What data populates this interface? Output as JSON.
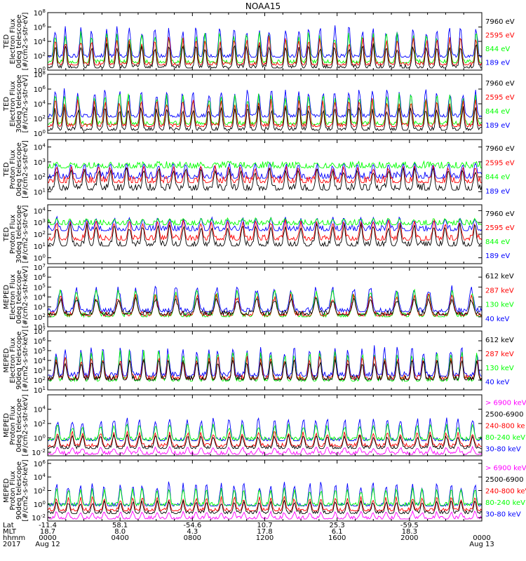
{
  "title": "NOAA15",
  "colors": {
    "black": "#000000",
    "red": "#ff0000",
    "green": "#00ff00",
    "blue": "#0000ff",
    "magenta": "#ff00ff"
  },
  "chart_data": [
    {
      "type": "line",
      "panel": 1,
      "ylabel": [
        "TED",
        "Electron Flux",
        "0deg telescope",
        "[#/cm2-s-str-eV]"
      ],
      "yticks": [
        "10^0",
        "10^2",
        "10^4",
        "10^6",
        "10^8"
      ],
      "ylim_log": [
        0,
        8
      ],
      "legend": [
        {
          "label": "7960 eV",
          "color": "black"
        },
        {
          "label": "2595 eV",
          "color": "red"
        },
        {
          "label": "844 eV",
          "color": "green"
        },
        {
          "label": "189 eV",
          "color": "blue"
        }
      ],
      "levels": {
        "blue": 1.8,
        "green": 1.0,
        "red": 0.7,
        "black": 0.3
      },
      "peaks": {
        "blue": 6.3,
        "green": 5.5,
        "red": 4.8,
        "black": 3.8
      },
      "npk": 34
    },
    {
      "type": "line",
      "panel": 2,
      "ylabel": [
        "TED",
        "Electron Flux",
        "30deg telescope",
        "[#/cm2-s-str-eV]"
      ],
      "yticks": [
        "10^0",
        "10^2",
        "10^4",
        "10^6",
        "10^8"
      ],
      "ylim_log": [
        0,
        8
      ],
      "legend": [
        {
          "label": "7960 eV",
          "color": "black"
        },
        {
          "label": "2595 eV",
          "color": "red"
        },
        {
          "label": "844 eV",
          "color": "green"
        },
        {
          "label": "189 eV",
          "color": "blue"
        }
      ],
      "levels": {
        "blue": 2.2,
        "green": 1.2,
        "red": 0.9,
        "black": 0.4
      },
      "peaks": {
        "blue": 6.2,
        "green": 5.6,
        "red": 4.9,
        "black": 3.8
      },
      "npk": 34
    },
    {
      "type": "line",
      "panel": 3,
      "ylabel": [
        "TED",
        "Proton Flux",
        "0deg telescope",
        "[#/cm2-s-str-eV]"
      ],
      "yticks": [
        "10^1",
        "10^2",
        "10^3",
        "10^4"
      ],
      "ylim_log": [
        0.5,
        4.5
      ],
      "legend": [
        {
          "label": "7960 eV",
          "color": "black"
        },
        {
          "label": "2595 eV",
          "color": "red"
        },
        {
          "label": "844 eV",
          "color": "green"
        },
        {
          "label": "189 eV",
          "color": "blue"
        }
      ],
      "levels": {
        "blue": 1.9,
        "green": 2.6,
        "red": 1.6,
        "black": 1.1
      },
      "peaks": {
        "blue": 3.0,
        "green": 3.0,
        "red": 2.8,
        "black": 2.7
      },
      "npk": 30
    },
    {
      "type": "line",
      "panel": 4,
      "ylabel": [
        "TED",
        "Proton Flux",
        "30deg telescope",
        "[#/cm2-s-str-eV]"
      ],
      "yticks": [
        "10^0",
        "10^1",
        "10^2",
        "10^3",
        "10^4"
      ],
      "ylim_log": [
        -0.5,
        4.5
      ],
      "legend": [
        {
          "label": "7960 eV",
          "color": "black"
        },
        {
          "label": "2595 eV",
          "color": "red"
        },
        {
          "label": "844 eV",
          "color": "green"
        },
        {
          "label": "189 eV",
          "color": "blue"
        }
      ],
      "levels": {
        "blue": 2.3,
        "green": 2.8,
        "red": 1.5,
        "black": 1.0
      },
      "peaks": {
        "blue": 3.5,
        "green": 3.4,
        "red": 3.3,
        "black": 3.0
      },
      "npk": 30
    },
    {
      "type": "line",
      "panel": 5,
      "ylabel": [
        "MEPED",
        "Electron Flux",
        "0deg telescope",
        "[#/cm2-s-str-keV]"
      ],
      "yticks": [
        "10^1",
        "10^2",
        "10^3",
        "10^4",
        "10^5",
        "10^6",
        "10^7"
      ],
      "ylim_log": [
        1,
        7
      ],
      "legend": [
        {
          "label": "612 keV",
          "color": "black"
        },
        {
          "label": "287 keV",
          "color": "red"
        },
        {
          "label": "130 keV",
          "color": "green"
        },
        {
          "label": "40 keV",
          "color": "blue"
        }
      ],
      "levels": {
        "blue": 2.5,
        "green": 2.0,
        "red": 2.1,
        "black": 2.2
      },
      "peaks": {
        "blue": 5.2,
        "green": 4.8,
        "red": 4.4,
        "black": 4.0
      },
      "npk": 22
    },
    {
      "type": "line",
      "panel": 6,
      "ylabel": [
        "MEPED",
        "Electron Flux",
        "90deg telescope",
        "[#/cm2-s-str-keV]"
      ],
      "yticks": [
        "10^1",
        "10^2",
        "10^3",
        "10^4",
        "10^5",
        "10^6",
        "10^7"
      ],
      "ylim_log": [
        1,
        7
      ],
      "legend": [
        {
          "label": "612 keV",
          "color": "black"
        },
        {
          "label": "287 keV",
          "color": "red"
        },
        {
          "label": "130 keV",
          "color": "green"
        },
        {
          "label": "40 keV",
          "color": "blue"
        }
      ],
      "levels": {
        "blue": 2.4,
        "green": 1.9,
        "red": 2.1,
        "black": 2.0
      },
      "peaks": {
        "blue": 5.6,
        "green": 5.2,
        "red": 4.6,
        "black": 4.2
      },
      "npk": 34
    },
    {
      "type": "line",
      "panel": 7,
      "ylabel": [
        "MEPED",
        "Proton Flux",
        "0deg telescope",
        "[#/cm2-s-str-keV]"
      ],
      "yticks": [
        "10^-2",
        "10^0",
        "10^2",
        "10^4"
      ],
      "ylim_log": [
        -2.5,
        6
      ],
      "legend": [
        {
          "label": "> 6900 keV",
          "color": "magenta"
        },
        {
          "label": "2500-6900",
          "color": "black"
        },
        {
          "label": "240-800 ke",
          "color": "red"
        },
        {
          "label": "80-240 keV",
          "color": "green"
        },
        {
          "label": "30-80 keV",
          "color": "blue"
        }
      ],
      "levels": {
        "blue": -0.4,
        "green": -0.3,
        "red": -1.2,
        "black": -1.5,
        "magenta": -2.3
      },
      "peaks": {
        "blue": 3.0,
        "green": 2.0,
        "red": 1.0,
        "black": 0.5,
        "magenta": -1.2
      },
      "npk": 30
    },
    {
      "type": "line",
      "panel": 8,
      "ylabel": [
        "MEPED",
        "Proton Flux",
        "90deg telescope",
        "[#/cm2-s-str-keV]"
      ],
      "yticks": [
        "10^-2",
        "10^0",
        "10^2",
        "10^4",
        "10^6"
      ],
      "ylim_log": [
        -2.5,
        6.5
      ],
      "legend": [
        {
          "label": "> 6900 keV",
          "color": "magenta"
        },
        {
          "label": "2500-6900",
          "color": "black"
        },
        {
          "label": "240-800 keV",
          "color": "red"
        },
        {
          "label": "80-240 keV",
          "color": "green"
        },
        {
          "label": "30-80 keV",
          "color": "blue"
        }
      ],
      "levels": {
        "blue": -0.3,
        "green": -0.2,
        "red": -1.0,
        "black": -1.4,
        "magenta": -2.2
      },
      "peaks": {
        "blue": 3.4,
        "green": 2.5,
        "red": 1.2,
        "black": 0.6,
        "magenta": -1.0
      },
      "npk": 34
    }
  ],
  "x_axis": {
    "row_labels": [
      "Lat",
      "MLT",
      "hhmm",
      "2017"
    ],
    "columns": [
      {
        "lat": "-11.4",
        "mlt": "18.7",
        "hhmm": "0000",
        "date": "Aug 12"
      },
      {
        "lat": "58.1",
        "mlt": "8.0",
        "hhmm": "0400",
        "date": ""
      },
      {
        "lat": "-54.6",
        "mlt": "4.3",
        "hhmm": "0800",
        "date": ""
      },
      {
        "lat": "10.7",
        "mlt": "17.8",
        "hhmm": "1200",
        "date": ""
      },
      {
        "lat": "25.3",
        "mlt": "6.1",
        "hhmm": "1600",
        "date": ""
      },
      {
        "lat": "-59.5",
        "mlt": "18.3",
        "hhmm": "2000",
        "date": ""
      },
      {
        "lat": "",
        "mlt": "",
        "hhmm": "0000",
        "date": "Aug 13"
      }
    ]
  }
}
